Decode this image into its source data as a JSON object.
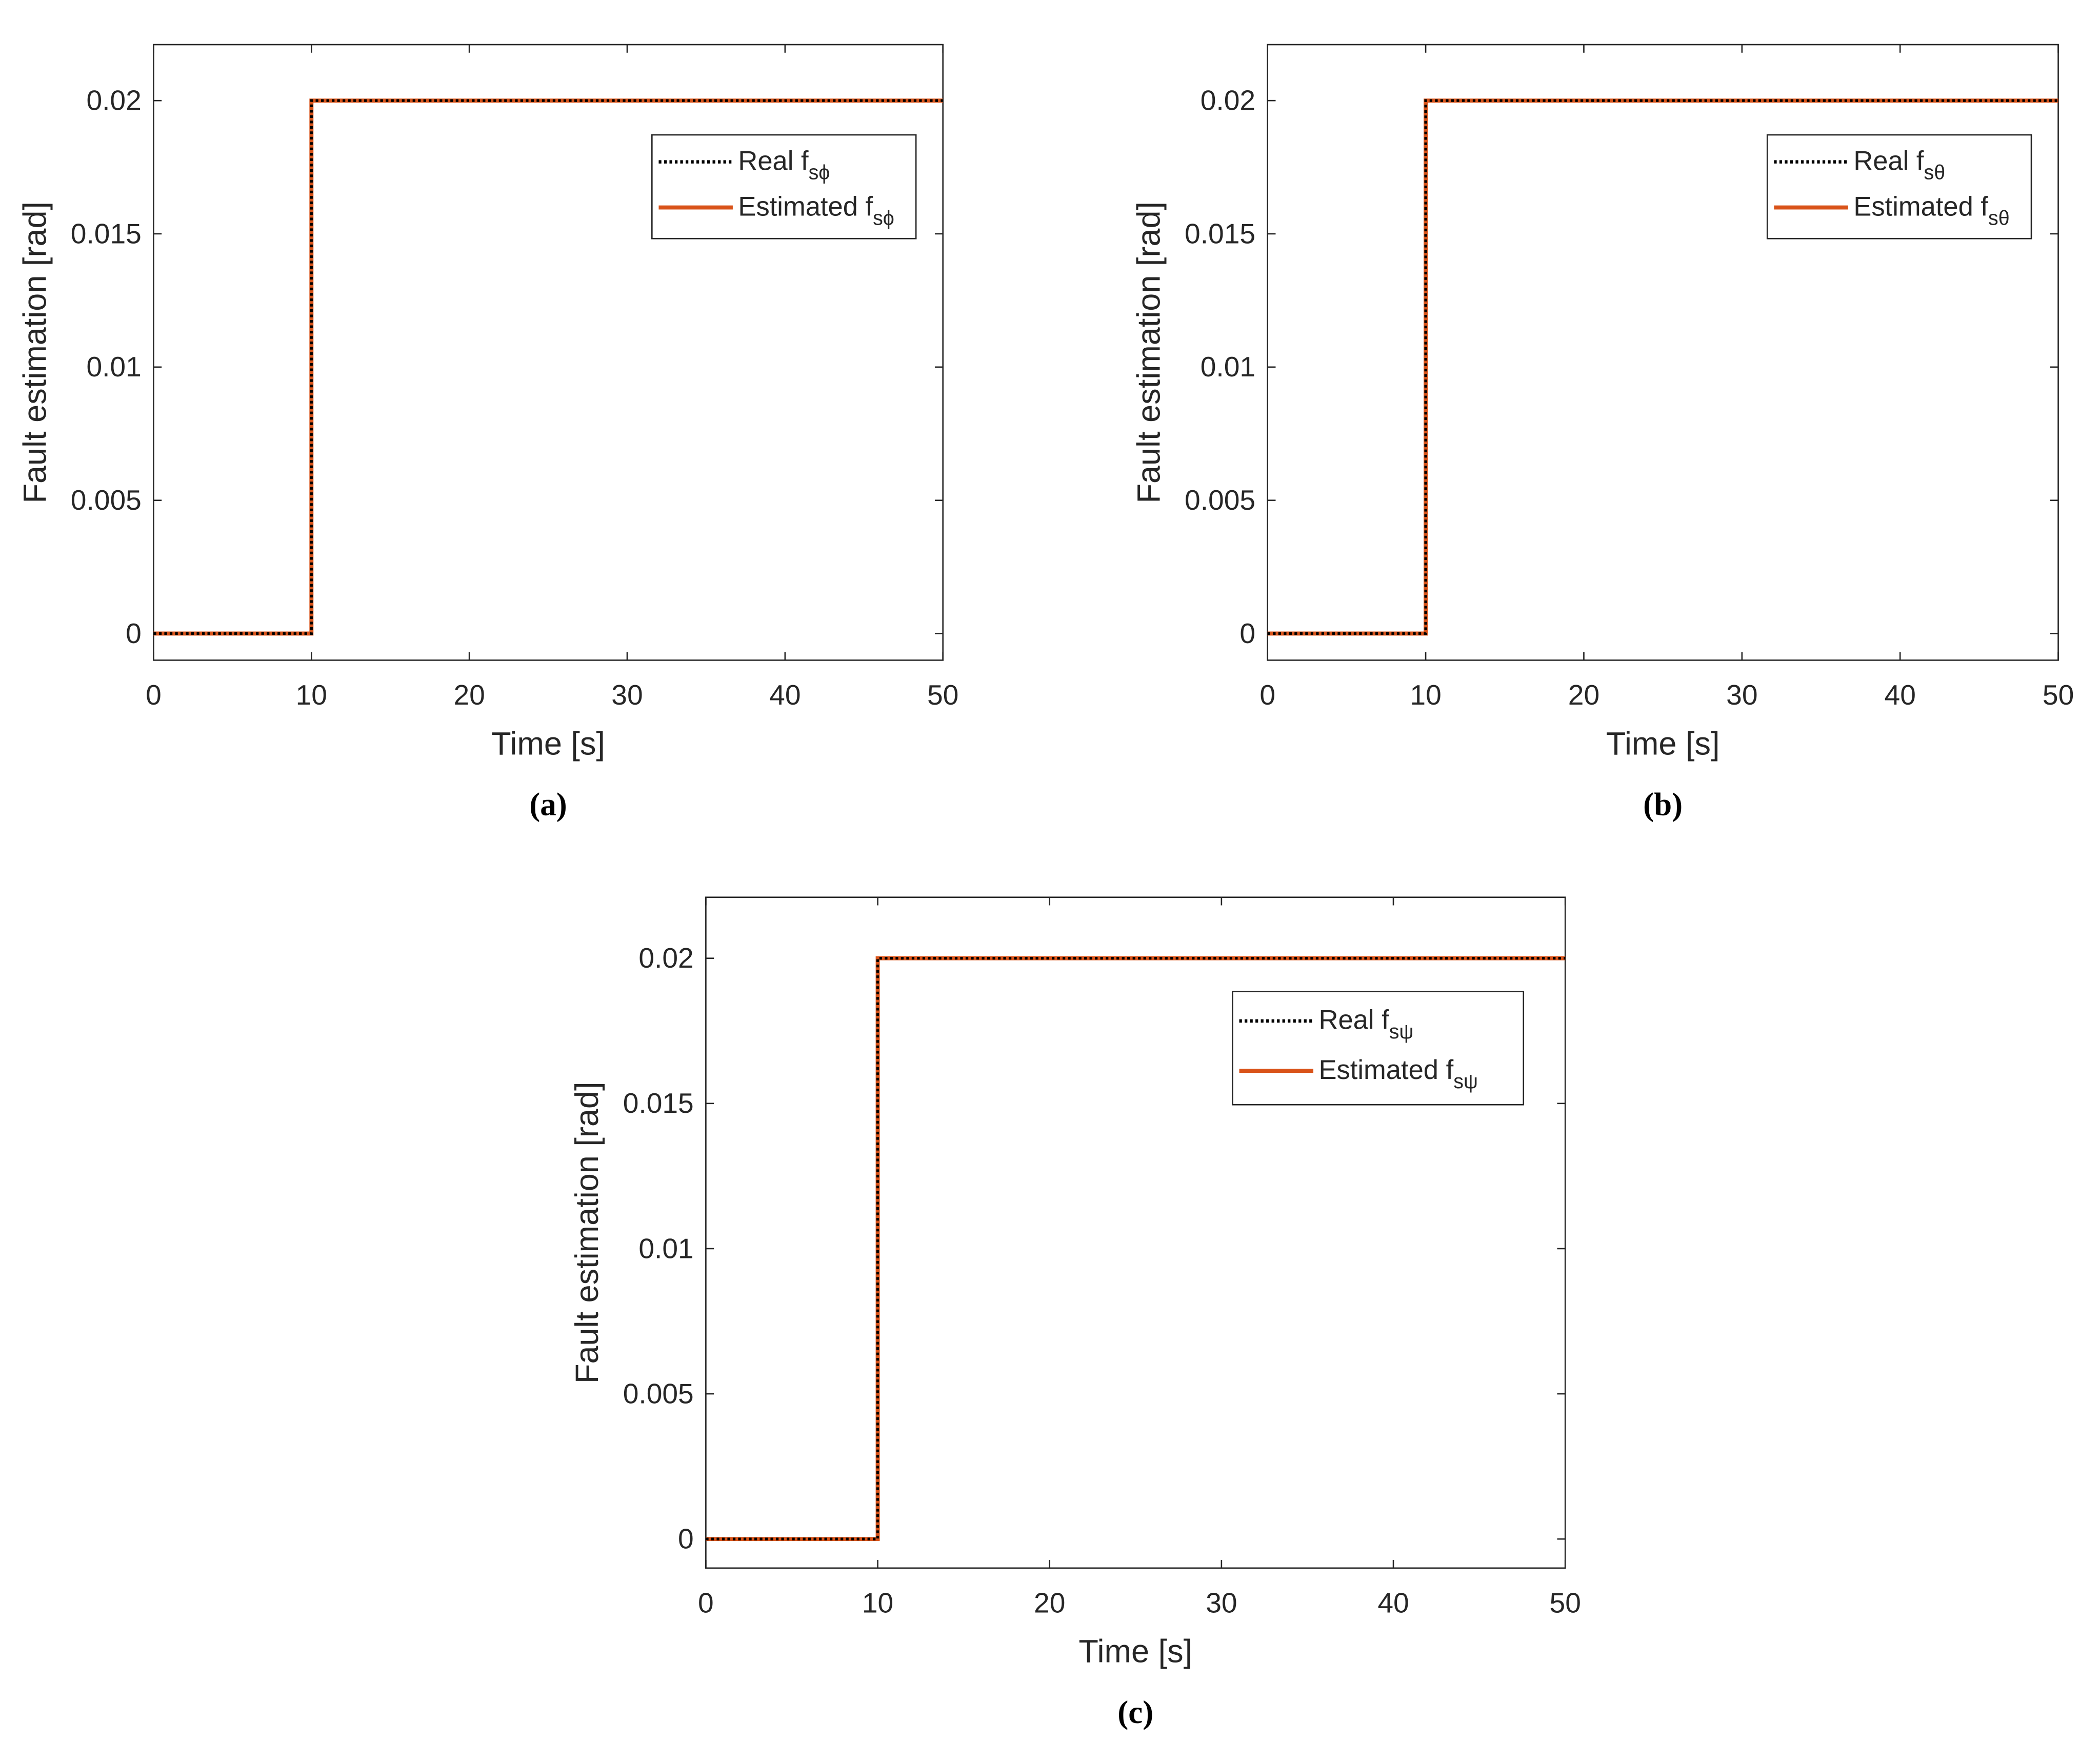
{
  "chart_data": [
    {
      "type": "line",
      "caption": "(a)",
      "xlabel": "Time [s]",
      "ylabel": "Fault estimation [rad]",
      "x": [
        0,
        10,
        10,
        50
      ],
      "xlim": [
        0,
        50
      ],
      "xticks": [
        0,
        10,
        20,
        30,
        40,
        50
      ],
      "ylim": [
        -0.001,
        0.0221
      ],
      "yticks": [
        0,
        0.005,
        0.01,
        0.015,
        0.02
      ],
      "legend": "upper right",
      "series": [
        {
          "name": "Real fsϕ",
          "color": "#000000",
          "style": "dotted",
          "values": [
            0,
            0,
            0.02,
            0.02
          ]
        },
        {
          "name": "Estimated fsϕ",
          "color": "#d95319",
          "style": "solid",
          "values": [
            0,
            0,
            0.02,
            0.02
          ]
        }
      ]
    },
    {
      "type": "line",
      "caption": "(b)",
      "xlabel": "Time [s]",
      "ylabel": "Fault estimation [rad]",
      "x": [
        0,
        10,
        10,
        50
      ],
      "xlim": [
        0,
        50
      ],
      "xticks": [
        0,
        10,
        20,
        30,
        40,
        50
      ],
      "ylim": [
        -0.001,
        0.0221
      ],
      "yticks": [
        0,
        0.005,
        0.01,
        0.015,
        0.02
      ],
      "legend": "upper right",
      "series": [
        {
          "name": "Real fsθ",
          "color": "#000000",
          "style": "dotted",
          "values": [
            0,
            0,
            0.02,
            0.02
          ]
        },
        {
          "name": "Estimated fsθ",
          "color": "#d95319",
          "style": "solid",
          "values": [
            0,
            0,
            0.02,
            0.02
          ]
        }
      ]
    },
    {
      "type": "line",
      "caption": "(c)",
      "xlabel": "Time [s]",
      "ylabel": "Fault estimation [rad]",
      "x": [
        0,
        10,
        10,
        50
      ],
      "xlim": [
        0,
        50
      ],
      "xticks": [
        0,
        10,
        20,
        30,
        40,
        50
      ],
      "ylim": [
        -0.001,
        0.0221
      ],
      "yticks": [
        0,
        0.005,
        0.01,
        0.015,
        0.02
      ],
      "legend": "upper right",
      "series": [
        {
          "name": "Real fsψ",
          "color": "#000000",
          "style": "dotted",
          "values": [
            0,
            0,
            0.02,
            0.02
          ]
        },
        {
          "name": "Estimated fsψ",
          "color": "#d95319",
          "style": "solid",
          "values": [
            0,
            0,
            0.02,
            0.02
          ]
        }
      ]
    }
  ]
}
